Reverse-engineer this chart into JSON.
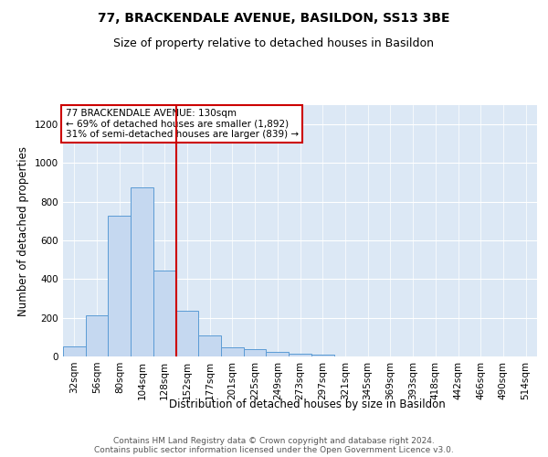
{
  "title": "77, BRACKENDALE AVENUE, BASILDON, SS13 3BE",
  "subtitle": "Size of property relative to detached houses in Basildon",
  "xlabel": "Distribution of detached houses by size in Basildon",
  "ylabel": "Number of detached properties",
  "footer_line1": "Contains HM Land Registry data © Crown copyright and database right 2024.",
  "footer_line2": "Contains public sector information licensed under the Open Government Licence v3.0.",
  "annotation_line1": "77 BRACKENDALE AVENUE: 130sqm",
  "annotation_line2": "← 69% of detached houses are smaller (1,892)",
  "annotation_line3": "31% of semi-detached houses are larger (839) →",
  "bin_labels": [
    "32sqm",
    "56sqm",
    "80sqm",
    "104sqm",
    "128sqm",
    "152sqm",
    "177sqm",
    "201sqm",
    "225sqm",
    "249sqm",
    "273sqm",
    "297sqm",
    "321sqm",
    "345sqm",
    "369sqm",
    "393sqm",
    "418sqm",
    "442sqm",
    "466sqm",
    "490sqm",
    "514sqm"
  ],
  "bin_values": [
    50,
    215,
    730,
    875,
    445,
    235,
    110,
    45,
    37,
    22,
    15,
    10,
    0,
    0,
    0,
    0,
    0,
    0,
    0,
    0,
    0
  ],
  "bar_color": "#c5d8f0",
  "bar_edge_color": "#5b9bd5",
  "red_line_color": "#cc0000",
  "annotation_box_color": "#ffffff",
  "annotation_box_edge": "#cc0000",
  "background_color": "#dce8f5",
  "ylim": [
    0,
    1300
  ],
  "yticks": [
    0,
    200,
    400,
    600,
    800,
    1000,
    1200
  ],
  "title_fontsize": 10,
  "subtitle_fontsize": 9,
  "axis_label_fontsize": 8.5,
  "tick_fontsize": 7.5,
  "annotation_fontsize": 7.5,
  "footer_fontsize": 6.5
}
